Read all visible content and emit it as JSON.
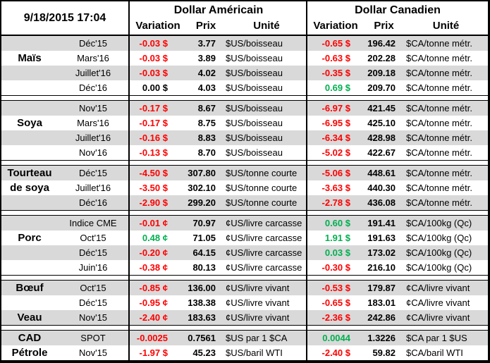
{
  "header": {
    "timestamp": "9/18/2015 17:04",
    "us_title": "Dollar Américain",
    "ca_title": "Dollar Canadien",
    "columns": {
      "variation": "Variation",
      "prix": "Prix",
      "unite": "Unité"
    }
  },
  "colors": {
    "negative": "#FF0000",
    "positive": "#00B050",
    "neutral": "#000000",
    "row_shade": "#D9D9D9",
    "border": "#000000"
  },
  "sections": [
    {
      "rows": [
        {
          "label": "",
          "month": "Déc'15",
          "us": {
            "variation": "-0.03 $",
            "trend": "down",
            "prix": "3.77",
            "unite": "$US/boisseau"
          },
          "ca": {
            "variation": "-0.65 $",
            "trend": "down",
            "prix": "196.42",
            "unite": "$CA/tonne métr."
          }
        },
        {
          "label": "Maïs",
          "month": "Mars'16",
          "us": {
            "variation": "-0.03 $",
            "trend": "down",
            "prix": "3.89",
            "unite": "$US/boisseau"
          },
          "ca": {
            "variation": "-0.63 $",
            "trend": "down",
            "prix": "202.28",
            "unite": "$CA/tonne métr."
          }
        },
        {
          "label": "",
          "month": "Juillet'16",
          "us": {
            "variation": "-0.03 $",
            "trend": "down",
            "prix": "4.02",
            "unite": "$US/boisseau"
          },
          "ca": {
            "variation": "-0.35 $",
            "trend": "down",
            "prix": "209.18",
            "unite": "$CA/tonne métr."
          }
        },
        {
          "label": "",
          "month": "Déc'16",
          "us": {
            "variation": "0.00 $",
            "trend": "flat",
            "prix": "4.03",
            "unite": "$US/boisseau"
          },
          "ca": {
            "variation": "0.69 $",
            "trend": "up",
            "prix": "209.70",
            "unite": "$CA/tonne métr."
          }
        }
      ]
    },
    {
      "rows": [
        {
          "label": "",
          "month": "Nov'15",
          "us": {
            "variation": "-0.17 $",
            "trend": "down",
            "prix": "8.67",
            "unite": "$US/boisseau"
          },
          "ca": {
            "variation": "-6.97 $",
            "trend": "down",
            "prix": "421.45",
            "unite": "$CA/tonne métr."
          }
        },
        {
          "label": "Soya",
          "month": "Mars'16",
          "us": {
            "variation": "-0.17 $",
            "trend": "down",
            "prix": "8.75",
            "unite": "$US/boisseau"
          },
          "ca": {
            "variation": "-6.95 $",
            "trend": "down",
            "prix": "425.10",
            "unite": "$CA/tonne métr."
          }
        },
        {
          "label": "",
          "month": "Juillet'16",
          "us": {
            "variation": "-0.16 $",
            "trend": "down",
            "prix": "8.83",
            "unite": "$US/boisseau"
          },
          "ca": {
            "variation": "-6.34 $",
            "trend": "down",
            "prix": "428.98",
            "unite": "$CA/tonne métr."
          }
        },
        {
          "label": "",
          "month": "Nov'16",
          "us": {
            "variation": "-0.13 $",
            "trend": "down",
            "prix": "8.70",
            "unite": "$US/boisseau"
          },
          "ca": {
            "variation": "-5.02 $",
            "trend": "down",
            "prix": "422.67",
            "unite": "$CA/tonne métr."
          }
        }
      ]
    },
    {
      "rows": [
        {
          "label": "Tourteau",
          "month": "Déc'15",
          "us": {
            "variation": "-4.50 $",
            "trend": "down",
            "prix": "307.80",
            "unite": "$US/tonne courte"
          },
          "ca": {
            "variation": "-5.06 $",
            "trend": "down",
            "prix": "448.61",
            "unite": "$CA/tonne métr."
          }
        },
        {
          "label": "de soya",
          "month": "Juillet'16",
          "us": {
            "variation": "-3.50 $",
            "trend": "down",
            "prix": "302.10",
            "unite": "$US/tonne courte"
          },
          "ca": {
            "variation": "-3.63 $",
            "trend": "down",
            "prix": "440.30",
            "unite": "$CA/tonne métr."
          }
        },
        {
          "label": "",
          "month": "Déc'16",
          "us": {
            "variation": "-2.90 $",
            "trend": "down",
            "prix": "299.20",
            "unite": "$US/tonne courte"
          },
          "ca": {
            "variation": "-2.78 $",
            "trend": "down",
            "prix": "436.08",
            "unite": "$CA/tonne métr."
          }
        }
      ]
    },
    {
      "rows": [
        {
          "label": "",
          "month": "Indice CME",
          "us": {
            "variation": "-0.01 ¢",
            "trend": "down",
            "prix": "70.97",
            "unite": "¢US/livre carcasse"
          },
          "ca": {
            "variation": "0.60 $",
            "trend": "up",
            "prix": "191.41",
            "unite": "$CA/100kg (Qc)"
          }
        },
        {
          "label": "Porc",
          "month": "Oct'15",
          "us": {
            "variation": "0.48 ¢",
            "trend": "up",
            "prix": "71.05",
            "unite": "¢US/livre carcasse"
          },
          "ca": {
            "variation": "1.91 $",
            "trend": "up",
            "prix": "191.63",
            "unite": "$CA/100kg (Qc)"
          }
        },
        {
          "label": "",
          "month": "Déc'15",
          "us": {
            "variation": "-0.20 ¢",
            "trend": "down",
            "prix": "64.15",
            "unite": "¢US/livre carcasse"
          },
          "ca": {
            "variation": "0.03 $",
            "trend": "up",
            "prix": "173.02",
            "unite": "$CA/100kg (Qc)"
          }
        },
        {
          "label": "",
          "month": "Juin'16",
          "us": {
            "variation": "-0.38 ¢",
            "trend": "down",
            "prix": "80.13",
            "unite": "¢US/livre carcasse"
          },
          "ca": {
            "variation": "-0.30 $",
            "trend": "down",
            "prix": "216.10",
            "unite": "$CA/100kg (Qc)"
          }
        }
      ]
    },
    {
      "rows": [
        {
          "label": "Bœuf",
          "month": "Oct'15",
          "us": {
            "variation": "-0.85 ¢",
            "trend": "down",
            "prix": "136.00",
            "unite": "¢US/livre vivant"
          },
          "ca": {
            "variation": "-0.53 $",
            "trend": "down",
            "prix": "179.87",
            "unite": "¢CA/livre vivant"
          }
        },
        {
          "label": "",
          "month": "Déc'15",
          "us": {
            "variation": "-0.95 ¢",
            "trend": "down",
            "prix": "138.38",
            "unite": "¢US/livre vivant"
          },
          "ca": {
            "variation": "-0.65 $",
            "trend": "down",
            "prix": "183.01",
            "unite": "¢CA/livre vivant"
          }
        },
        {
          "label": "Veau",
          "month": "Nov'15",
          "us": {
            "variation": "-2.40 ¢",
            "trend": "down",
            "prix": "183.63",
            "unite": "¢US/livre vivant"
          },
          "ca": {
            "variation": "-2.36 $",
            "trend": "down",
            "prix": "242.86",
            "unite": "¢CA/livre vivant"
          }
        }
      ]
    },
    {
      "rows": [
        {
          "label": "CAD",
          "month": "SPOT",
          "us": {
            "variation": "-0.0025",
            "trend": "down",
            "prix": "0.7561",
            "unite": "$US par 1 $CA"
          },
          "ca": {
            "variation": "0.0044",
            "trend": "up",
            "prix": "1.3226",
            "unite": "$CA par 1 $US"
          }
        },
        {
          "label": "Pétrole",
          "month": "Nov'15",
          "us": {
            "variation": "-1.97 $",
            "trend": "down",
            "prix": "45.23",
            "unite": "$US/baril WTI"
          },
          "ca": {
            "variation": "-2.40 $",
            "trend": "down",
            "prix": "59.82",
            "unite": "$CA/baril WTI"
          }
        }
      ]
    }
  ]
}
